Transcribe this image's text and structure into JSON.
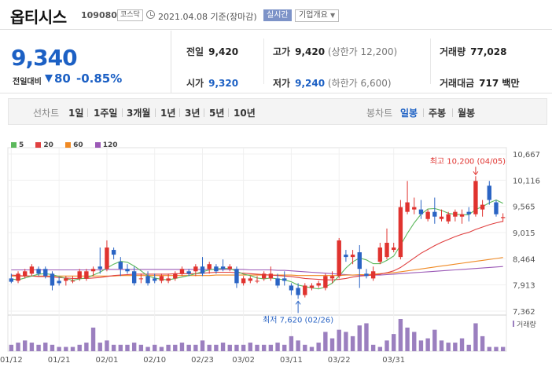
{
  "header": {
    "name": "옵티시스",
    "code": "109080",
    "market": "코스닥",
    "date": "2021.04.08",
    "basis": "기준(장마감)",
    "realtime": "실시간",
    "company_info": "기업개요"
  },
  "price": {
    "current": "9,340",
    "change_label": "전일대비",
    "change_value": "80",
    "change_pct": "-0.85%",
    "prev_close_label": "전일",
    "prev_close": "9,420",
    "high_label": "고가",
    "high": "9,420",
    "upper_limit": "(상한가 12,200)",
    "volume_label": "거래량",
    "volume": "77,028",
    "open_label": "시가",
    "open": "9,320",
    "low_label": "저가",
    "low": "9,240",
    "lower_limit": "(하한가 6,600)",
    "amount_label": "거래대금",
    "amount": "717 백만"
  },
  "period_tabs": {
    "line_label": "선차트",
    "items": [
      "1일",
      "1주일",
      "3개월",
      "1년",
      "3년",
      "5년",
      "10년"
    ],
    "candle_label": "봉차트",
    "candle_items": [
      "일봉",
      "주봉",
      "월봉"
    ],
    "active_candle": "일봉"
  },
  "colors": {
    "up": "#e0332f",
    "down": "#2a64c4",
    "ma5": "#5cb85c",
    "ma20": "#e04040",
    "ma60": "#f08a24",
    "ma120": "#9b59b6",
    "volume": "#9b7fbf"
  },
  "chart_data": {
    "type": "candlestick",
    "legend": [
      {
        "name": "5",
        "color": "#5cb85c"
      },
      {
        "name": "20",
        "color": "#e04040"
      },
      {
        "name": "60",
        "color": "#f08a24"
      },
      {
        "name": "120",
        "color": "#9b59b6"
      }
    ],
    "ylim": [
      7362,
      10667
    ],
    "yticks": [
      "10,667",
      "10,116",
      "9,565",
      "9,015",
      "8,464",
      "7,913",
      "7,362"
    ],
    "xticks": [
      "01/12",
      "01/21",
      "02/01",
      "02/10",
      "02/23",
      "03/02",
      "03/11",
      "03/22",
      "03/31"
    ],
    "max_note": "최고 10,200 (04/05)",
    "min_note": "최저 7,620 (02/26)",
    "volume_label": "거래량",
    "candles": [
      {
        "o": 8050,
        "h": 8150,
        "l": 7950,
        "c": 7980
      },
      {
        "o": 8000,
        "h": 8200,
        "l": 7950,
        "c": 8150
      },
      {
        "o": 8100,
        "h": 8250,
        "l": 8050,
        "c": 8200
      },
      {
        "o": 8150,
        "h": 8350,
        "l": 8100,
        "c": 8300
      },
      {
        "o": 8250,
        "h": 8300,
        "l": 8100,
        "c": 8150
      },
      {
        "o": 8250,
        "h": 8300,
        "l": 8050,
        "c": 8100
      },
      {
        "o": 8150,
        "h": 8200,
        "l": 7800,
        "c": 7900
      },
      {
        "o": 8000,
        "h": 8080,
        "l": 7900,
        "c": 7950
      },
      {
        "o": 8000,
        "h": 8100,
        "l": 7900,
        "c": 8050
      },
      {
        "o": 8000,
        "h": 8100,
        "l": 7950,
        "c": 8000
      },
      {
        "o": 8050,
        "h": 8250,
        "l": 8000,
        "c": 8200
      },
      {
        "o": 8050,
        "h": 8250,
        "l": 8000,
        "c": 8200
      },
      {
        "o": 8200,
        "h": 8300,
        "l": 8100,
        "c": 8250
      },
      {
        "o": 8300,
        "h": 8700,
        "l": 8150,
        "c": 8250
      },
      {
        "o": 8250,
        "h": 8850,
        "l": 8200,
        "c": 8700
      },
      {
        "o": 8650,
        "h": 8700,
        "l": 8450,
        "c": 8550
      },
      {
        "o": 8400,
        "h": 8500,
        "l": 8100,
        "c": 8250
      },
      {
        "o": 8250,
        "h": 8350,
        "l": 8150,
        "c": 8200
      },
      {
        "o": 8200,
        "h": 8300,
        "l": 7900,
        "c": 7950
      },
      {
        "o": 8050,
        "h": 8150,
        "l": 7950,
        "c": 8050
      },
      {
        "o": 8100,
        "h": 8200,
        "l": 7900,
        "c": 7950
      },
      {
        "o": 8050,
        "h": 8150,
        "l": 7950,
        "c": 8000
      },
      {
        "o": 8000,
        "h": 8150,
        "l": 7950,
        "c": 8100
      },
      {
        "o": 8000,
        "h": 8150,
        "l": 7950,
        "c": 8050
      },
      {
        "o": 8050,
        "h": 8200,
        "l": 8000,
        "c": 8150
      },
      {
        "o": 8150,
        "h": 8300,
        "l": 8100,
        "c": 8250
      },
      {
        "o": 8200,
        "h": 8250,
        "l": 8100,
        "c": 8150
      },
      {
        "o": 8200,
        "h": 8350,
        "l": 8100,
        "c": 8300
      },
      {
        "o": 8300,
        "h": 8500,
        "l": 8100,
        "c": 8150
      },
      {
        "o": 8250,
        "h": 8400,
        "l": 8150,
        "c": 8350
      },
      {
        "o": 8300,
        "h": 8350,
        "l": 8150,
        "c": 8200
      },
      {
        "o": 8300,
        "h": 8450,
        "l": 8200,
        "c": 8250
      },
      {
        "o": 8250,
        "h": 8350,
        "l": 8200,
        "c": 8300
      },
      {
        "o": 8250,
        "h": 8300,
        "l": 7850,
        "c": 7950
      },
      {
        "o": 7950,
        "h": 8100,
        "l": 7900,
        "c": 8050
      },
      {
        "o": 8000,
        "h": 8100,
        "l": 7950,
        "c": 8050
      },
      {
        "o": 8000,
        "h": 8100,
        "l": 7950,
        "c": 8000
      },
      {
        "o": 8050,
        "h": 8200,
        "l": 8000,
        "c": 8150
      },
      {
        "o": 8050,
        "h": 8300,
        "l": 8000,
        "c": 8150
      },
      {
        "o": 8050,
        "h": 8150,
        "l": 7850,
        "c": 7900
      },
      {
        "o": 8050,
        "h": 8200,
        "l": 7900,
        "c": 8000
      },
      {
        "o": 7900,
        "h": 7950,
        "l": 7700,
        "c": 7800
      },
      {
        "o": 7850,
        "h": 7950,
        "l": 7620,
        "c": 7700
      },
      {
        "o": 7700,
        "h": 7950,
        "l": 7650,
        "c": 7900
      },
      {
        "o": 7850,
        "h": 7950,
        "l": 7800,
        "c": 7900
      },
      {
        "o": 7900,
        "h": 8000,
        "l": 7850,
        "c": 7950
      },
      {
        "o": 7850,
        "h": 8150,
        "l": 7800,
        "c": 8100
      },
      {
        "o": 8050,
        "h": 8200,
        "l": 7950,
        "c": 8100
      },
      {
        "o": 8100,
        "h": 8900,
        "l": 8050,
        "c": 8850
      },
      {
        "o": 8550,
        "h": 8650,
        "l": 8400,
        "c": 8500
      },
      {
        "o": 8500,
        "h": 8650,
        "l": 8350,
        "c": 8550
      },
      {
        "o": 8600,
        "h": 8750,
        "l": 7850,
        "c": 8250
      },
      {
        "o": 8150,
        "h": 8250,
        "l": 8050,
        "c": 8100
      },
      {
        "o": 8050,
        "h": 8300,
        "l": 8000,
        "c": 8200
      },
      {
        "o": 8400,
        "h": 8800,
        "l": 8350,
        "c": 8700
      },
      {
        "o": 8500,
        "h": 9100,
        "l": 8450,
        "c": 8800
      },
      {
        "o": 8650,
        "h": 8800,
        "l": 8600,
        "c": 8700
      },
      {
        "o": 8500,
        "h": 9700,
        "l": 8450,
        "c": 9550
      },
      {
        "o": 9450,
        "h": 10100,
        "l": 9400,
        "c": 9650
      },
      {
        "o": 9500,
        "h": 9750,
        "l": 9400,
        "c": 9550
      },
      {
        "o": 9500,
        "h": 9700,
        "l": 9300,
        "c": 9400
      },
      {
        "o": 9300,
        "h": 9500,
        "l": 9250,
        "c": 9450
      },
      {
        "o": 9450,
        "h": 9750,
        "l": 9200,
        "c": 9350
      },
      {
        "o": 9300,
        "h": 9500,
        "l": 9250,
        "c": 9350
      },
      {
        "o": 9250,
        "h": 9450,
        "l": 9200,
        "c": 9400
      },
      {
        "o": 9350,
        "h": 9500,
        "l": 9250,
        "c": 9450
      },
      {
        "o": 9350,
        "h": 9500,
        "l": 9200,
        "c": 9400
      },
      {
        "o": 9450,
        "h": 9550,
        "l": 9250,
        "c": 9400
      },
      {
        "o": 9400,
        "h": 10200,
        "l": 9350,
        "c": 10100
      },
      {
        "o": 9500,
        "h": 9700,
        "l": 9350,
        "c": 9600
      },
      {
        "o": 10000,
        "h": 10100,
        "l": 9600,
        "c": 9700
      },
      {
        "o": 9650,
        "h": 9700,
        "l": 9350,
        "c": 9400
      },
      {
        "o": 9320,
        "h": 9420,
        "l": 9240,
        "c": 9340
      }
    ],
    "ma5": [
      8040,
      8020,
      8060,
      8100,
      8140,
      8150,
      8130,
      8090,
      8050,
      8010,
      8040,
      8060,
      8120,
      8180,
      8270,
      8350,
      8410,
      8390,
      8310,
      8210,
      8100,
      8060,
      8030,
      8020,
      8050,
      8080,
      8110,
      8150,
      8190,
      8230,
      8250,
      8260,
      8260,
      8200,
      8140,
      8110,
      8060,
      8040,
      8060,
      8040,
      8020,
      7980,
      7910,
      7880,
      7850,
      7830,
      7870,
      7950,
      8100,
      8270,
      8400,
      8480,
      8440,
      8360,
      8360,
      8430,
      8520,
      8750,
      9000,
      9220,
      9400,
      9510,
      9520,
      9480,
      9420,
      9400,
      9390,
      9390,
      9500,
      9560,
      9640,
      9700,
      9630
    ],
    "ma20": [
      8120,
      8110,
      8100,
      8100,
      8090,
      8090,
      8080,
      8070,
      8060,
      8050,
      8050,
      8050,
      8060,
      8070,
      8090,
      8110,
      8120,
      8130,
      8140,
      8140,
      8140,
      8140,
      8140,
      8140,
      8150,
      8150,
      8150,
      8150,
      8160,
      8170,
      8180,
      8180,
      8180,
      8170,
      8160,
      8150,
      8140,
      8130,
      8120,
      8110,
      8100,
      8090,
      8070,
      8050,
      8040,
      8030,
      8020,
      8020,
      8030,
      8050,
      8080,
      8100,
      8110,
      8120,
      8140,
      8170,
      8210,
      8280,
      8380,
      8480,
      8580,
      8660,
      8740,
      8810,
      8870,
      8930,
      8980,
      9020,
      9080,
      9130,
      9180,
      9220,
      9250
    ],
    "ma60": [
      8100,
      8100,
      8100,
      8100,
      8100,
      8100,
      8100,
      8100,
      8100,
      8100,
      8100,
      8100,
      8100,
      8100,
      8100,
      8100,
      8110,
      8110,
      8110,
      8110,
      8110,
      8110,
      8110,
      8110,
      8110,
      8110,
      8110,
      8110,
      8110,
      8110,
      8120,
      8120,
      8120,
      8120,
      8120,
      8120,
      8120,
      8120,
      8120,
      8120,
      8120,
      8120,
      8110,
      8110,
      8110,
      8110,
      8110,
      8110,
      8110,
      8120,
      8120,
      8130,
      8130,
      8140,
      8150,
      8160,
      8170,
      8190,
      8210,
      8230,
      8250,
      8270,
      8290,
      8310,
      8330,
      8350,
      8370,
      8390,
      8410,
      8430,
      8450,
      8470,
      8490
    ],
    "ma120": [
      8230,
      8230,
      8230,
      8230,
      8230,
      8230,
      8230,
      8230,
      8230,
      8230,
      8230,
      8230,
      8230,
      8230,
      8240,
      8240,
      8240,
      8240,
      8240,
      8240,
      8240,
      8240,
      8240,
      8240,
      8240,
      8240,
      8240,
      8240,
      8240,
      8240,
      8240,
      8240,
      8240,
      8240,
      8240,
      8230,
      8230,
      8230,
      8230,
      8220,
      8220,
      8210,
      8200,
      8190,
      8180,
      8170,
      8160,
      8150,
      8140,
      8130,
      8120,
      8120,
      8120,
      8120,
      8120,
      8130,
      8140,
      8150,
      8160,
      8170,
      8180,
      8190,
      8200,
      8210,
      8220,
      8230,
      8240,
      8250,
      8260,
      8270,
      8280,
      8290,
      8300
    ],
    "volume": [
      3,
      4,
      5,
      4,
      3,
      4,
      3,
      2,
      2,
      2,
      3,
      4,
      11,
      4,
      5,
      3,
      3,
      3,
      4,
      3,
      2,
      3,
      2,
      3,
      3,
      4,
      3,
      3,
      5,
      3,
      3,
      4,
      3,
      3,
      3,
      4,
      3,
      3,
      3,
      4,
      3,
      7,
      5,
      3,
      2,
      4,
      9,
      6,
      10,
      9,
      7,
      12,
      13,
      3,
      2,
      5,
      8,
      15,
      11,
      9,
      5,
      6,
      10,
      5,
      4,
      4,
      6,
      3,
      13,
      7,
      2,
      2,
      2
    ]
  }
}
